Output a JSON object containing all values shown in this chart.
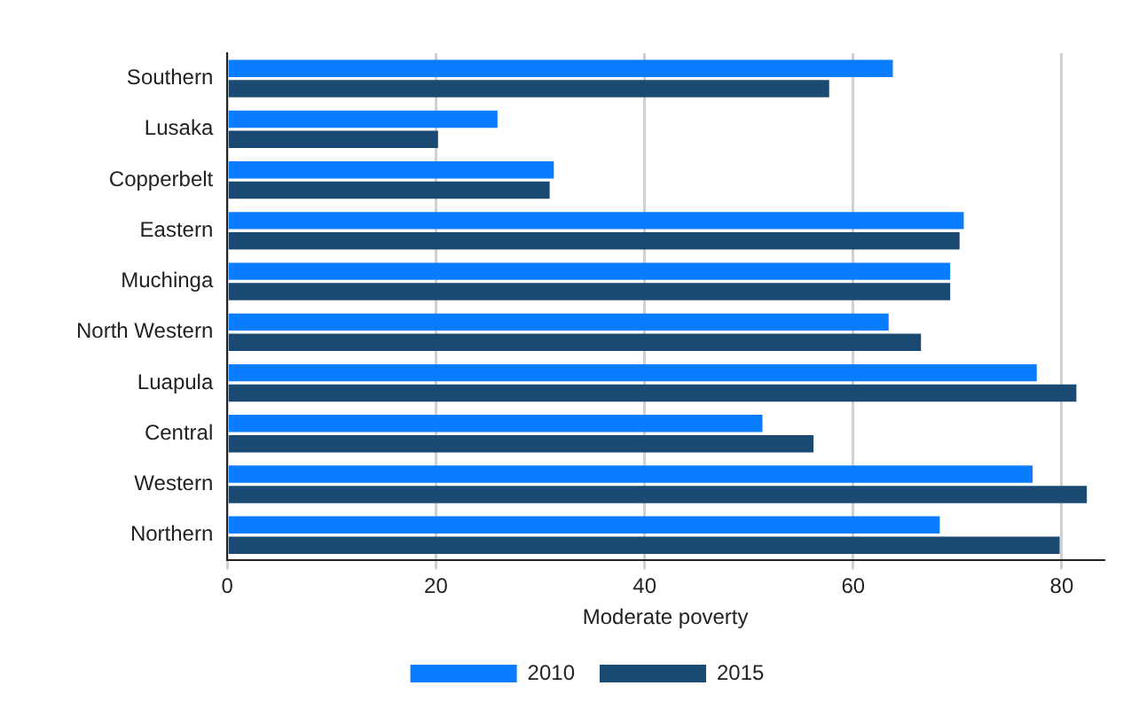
{
  "chart_data": {
    "type": "bar",
    "orientation": "horizontal",
    "xlabel": "Moderate poverty",
    "categories": [
      "Southern",
      "Lusaka",
      "Copperbelt",
      "Eastern",
      "Muchinga",
      "North Western",
      "Luapula",
      "Central",
      "Western",
      "Northern"
    ],
    "series": [
      {
        "name": "2010",
        "color": "#0a7cff",
        "values": [
          63.8,
          25.9,
          31.3,
          70.6,
          69.3,
          63.4,
          77.6,
          51.3,
          77.2,
          68.3
        ]
      },
      {
        "name": "2015",
        "color": "#1a4a72",
        "values": [
          57.7,
          20.2,
          30.9,
          70.2,
          69.3,
          66.5,
          81.4,
          56.2,
          82.4,
          79.8
        ]
      }
    ],
    "xlim": [
      0,
      84
    ],
    "xticks": [
      0,
      20,
      40,
      60,
      80
    ],
    "grid": "x",
    "legend": "bottom"
  }
}
